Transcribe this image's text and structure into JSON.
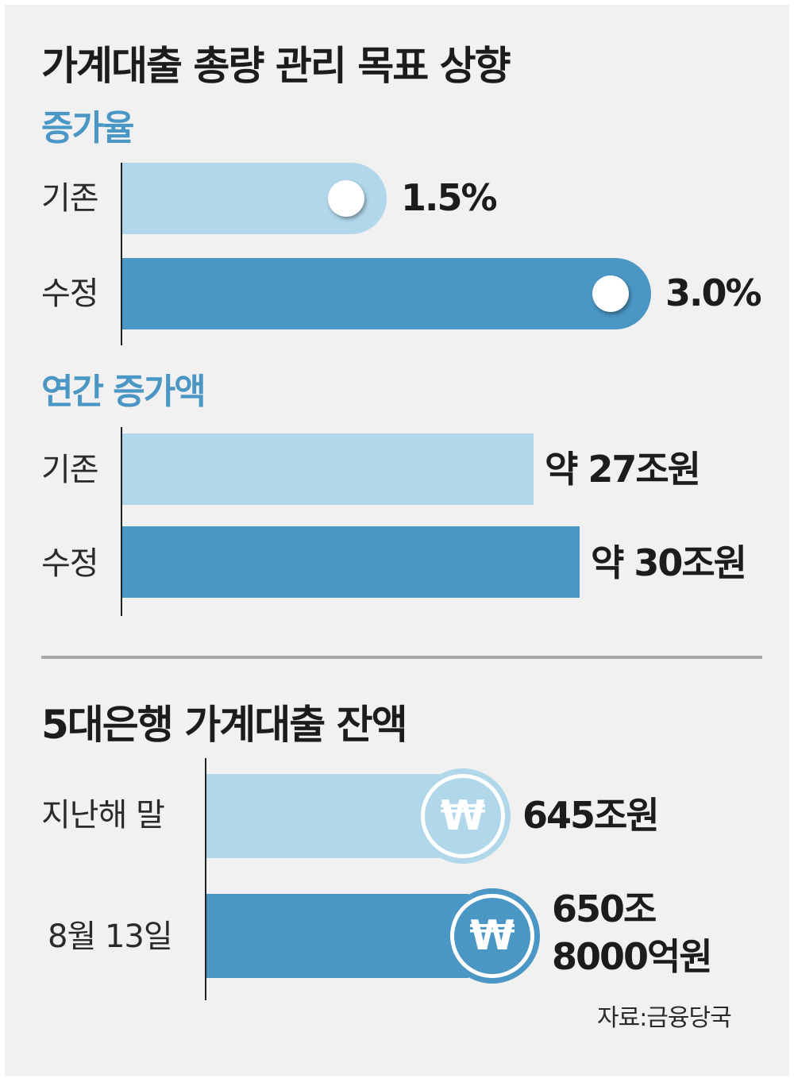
{
  "main_title": "가계대출 총량 관리 목표 상향",
  "source": "자료:금융당국",
  "colors": {
    "light_bar": "#b1d7eb",
    "dark_bar": "#4a96c4",
    "subtitle": "#4a96c4",
    "background": "#f1f1f1"
  },
  "icons": {
    "knob": "white-circle-knob",
    "coin": "won-coin-icon",
    "coin_symbol": "₩"
  },
  "chart_data": [
    {
      "type": "bar",
      "orientation": "horizontal",
      "title": "증가율",
      "categories": [
        "기존",
        "수정"
      ],
      "values": [
        1.5,
        3.0
      ],
      "value_labels": [
        "1.5%",
        "3.0%"
      ],
      "unit": "%"
    },
    {
      "type": "bar",
      "orientation": "horizontal",
      "title": "연간 증가액",
      "categories": [
        "기존",
        "수정"
      ],
      "values": [
        27,
        30
      ],
      "value_labels": [
        "약 27조원",
        "약 30조원"
      ],
      "unit": "조원"
    },
    {
      "type": "bar",
      "orientation": "horizontal",
      "title": "5대은행 가계대출 잔액",
      "categories": [
        "지난해 말",
        "8월 13일"
      ],
      "values": [
        645,
        650.8
      ],
      "value_labels": [
        [
          "645조원"
        ],
        [
          "650조",
          "8000억원"
        ]
      ],
      "unit": "조원"
    }
  ]
}
